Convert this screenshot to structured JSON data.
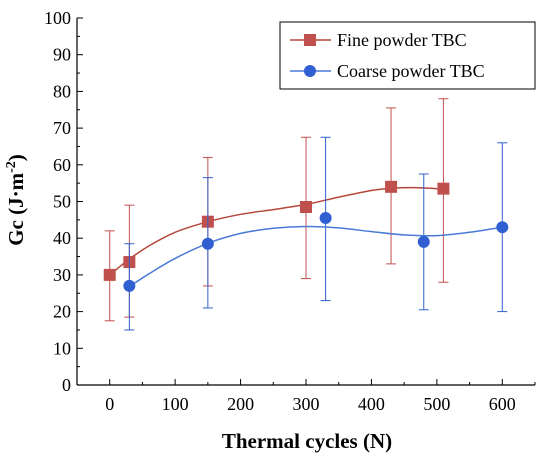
{
  "chart_data": {
    "type": "scatter",
    "title": "",
    "xlabel": "Thermal cycles (N)",
    "ylabel": {
      "main": "Gc (J·m",
      "sup": "-2",
      "end": ")"
    },
    "xlim": [
      -50,
      650
    ],
    "ylim": [
      0,
      100
    ],
    "x_ticks": [
      0,
      100,
      200,
      300,
      400,
      500,
      600
    ],
    "y_ticks": [
      0,
      10,
      20,
      30,
      40,
      50,
      60,
      70,
      80,
      90,
      100
    ],
    "grid": false,
    "legend_position": "top-right",
    "series": [
      {
        "name": "Fine powder TBC",
        "color": "#c0504d",
        "line_color": "#b5473a",
        "marker": "square",
        "x": [
          0,
          30,
          150,
          300,
          430,
          510
        ],
        "y": [
          30,
          33.5,
          44.5,
          48.5,
          54,
          53.5
        ],
        "err_low": [
          17.5,
          18.5,
          27,
          29,
          33,
          28
        ],
        "err_high": [
          42,
          49,
          62,
          67.5,
          75.5,
          78
        ],
        "fit": [
          [
            0,
            30
          ],
          [
            30,
            34.3
          ],
          [
            60,
            37.9
          ],
          [
            100,
            41.6
          ],
          [
            150,
            44.5
          ],
          [
            200,
            46.5
          ],
          [
            250,
            47.8
          ],
          [
            300,
            49.2
          ],
          [
            350,
            51.2
          ],
          [
            400,
            53
          ],
          [
            430,
            53.6
          ],
          [
            460,
            53.8
          ],
          [
            490,
            53.6
          ],
          [
            510,
            53.3
          ]
        ]
      },
      {
        "name": "Coarse powder TBC",
        "color": "#2f5fd0",
        "line_color": "#4a7ad8",
        "marker": "circle",
        "x": [
          30,
          150,
          330,
          480,
          600
        ],
        "y": [
          27,
          38.5,
          45.5,
          39,
          43
        ],
        "err_low": [
          15,
          21,
          23,
          20.5,
          20
        ],
        "err_high": [
          38.5,
          56.5,
          67.5,
          57.5,
          66
        ],
        "fit": [
          [
            30,
            26.8
          ],
          [
            60,
            30.3
          ],
          [
            100,
            34.5
          ],
          [
            150,
            38.6
          ],
          [
            200,
            41.3
          ],
          [
            250,
            42.7
          ],
          [
            300,
            43.2
          ],
          [
            350,
            42.8
          ],
          [
            400,
            41.8
          ],
          [
            450,
            40.9
          ],
          [
            500,
            40.7
          ],
          [
            550,
            41.6
          ],
          [
            600,
            43
          ]
        ]
      }
    ]
  }
}
